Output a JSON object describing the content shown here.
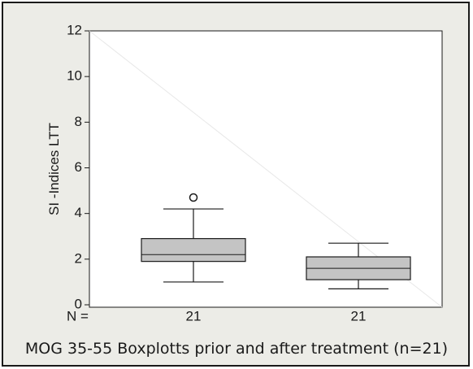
{
  "chart_data": {
    "type": "boxplot",
    "ylabel": "SI -Indices LTT",
    "ylim": [
      0,
      12
    ],
    "yticks": [
      0,
      2,
      4,
      6,
      8,
      10,
      12
    ],
    "n_label": "N =",
    "caption": "MOG 35-55 Boxplotts prior and after treatment (n=21)",
    "box_color": "#c4c4c4",
    "grid": false,
    "boxes": [
      {
        "n": "21",
        "whisker_low": 1.0,
        "q1": 1.9,
        "median": 2.2,
        "q3": 2.9,
        "whisker_high": 4.2,
        "outliers": [
          4.7
        ]
      },
      {
        "n": "21",
        "whisker_low": 0.7,
        "q1": 1.1,
        "median": 1.6,
        "q3": 2.1,
        "whisker_high": 2.7,
        "outliers": []
      }
    ]
  }
}
